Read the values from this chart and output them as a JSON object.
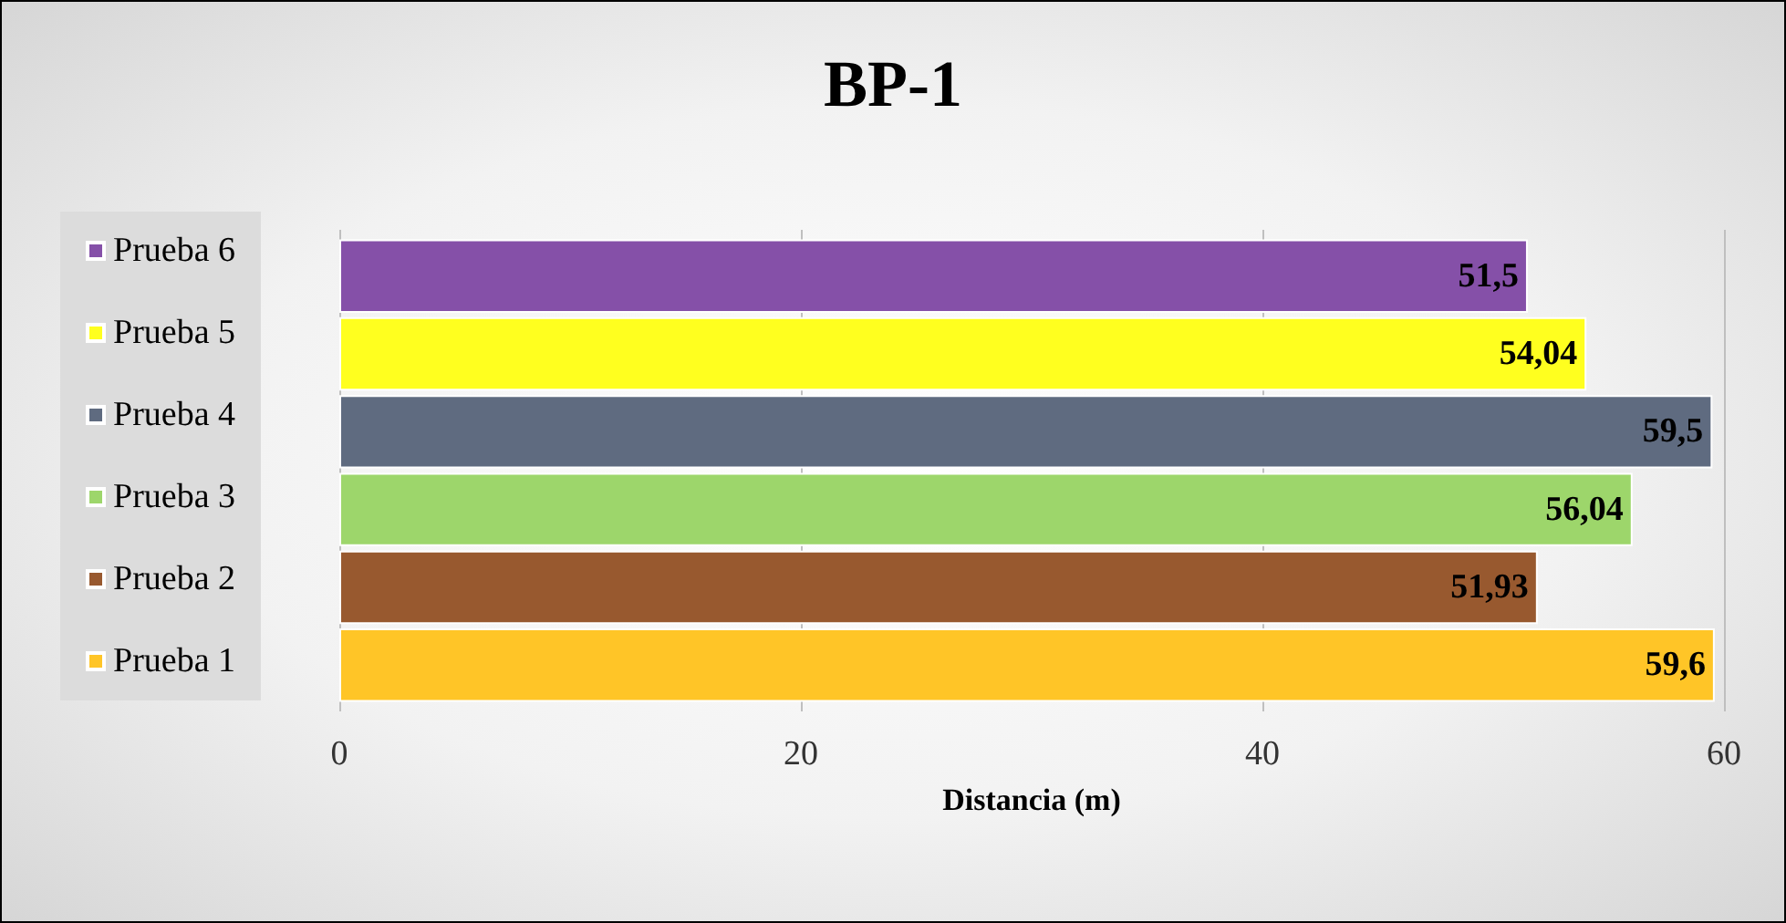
{
  "chart_data": {
    "type": "bar",
    "orientation": "horizontal",
    "title": "BP-1",
    "xlabel": "Distancia (m)",
    "categories": [
      null
    ],
    "series": [
      {
        "name": "Prueba 6",
        "color": "#8550a8",
        "values": [
          51.5
        ],
        "value_labels": [
          "51,5"
        ]
      },
      {
        "name": "Prueba 5",
        "color": "#ffff1f",
        "values": [
          54.04
        ],
        "value_labels": [
          "54,04"
        ]
      },
      {
        "name": "Prueba 4",
        "color": "#5f6b80",
        "values": [
          59.5
        ],
        "value_labels": [
          "59,5"
        ]
      },
      {
        "name": "Prueba 3",
        "color": "#9dd66b",
        "values": [
          56.04
        ],
        "value_labels": [
          "56,04"
        ]
      },
      {
        "name": "Prueba 2",
        "color": "#98592f",
        "values": [
          51.93
        ],
        "value_labels": [
          "51,93"
        ]
      },
      {
        "name": "Prueba 1",
        "color": "#ffc527",
        "values": [
          59.6
        ],
        "value_labels": [
          "59,6"
        ]
      }
    ],
    "xlim": [
      0,
      60
    ],
    "xticks": [
      0,
      20,
      40,
      60
    ],
    "grid": "x",
    "legend": "left"
  }
}
